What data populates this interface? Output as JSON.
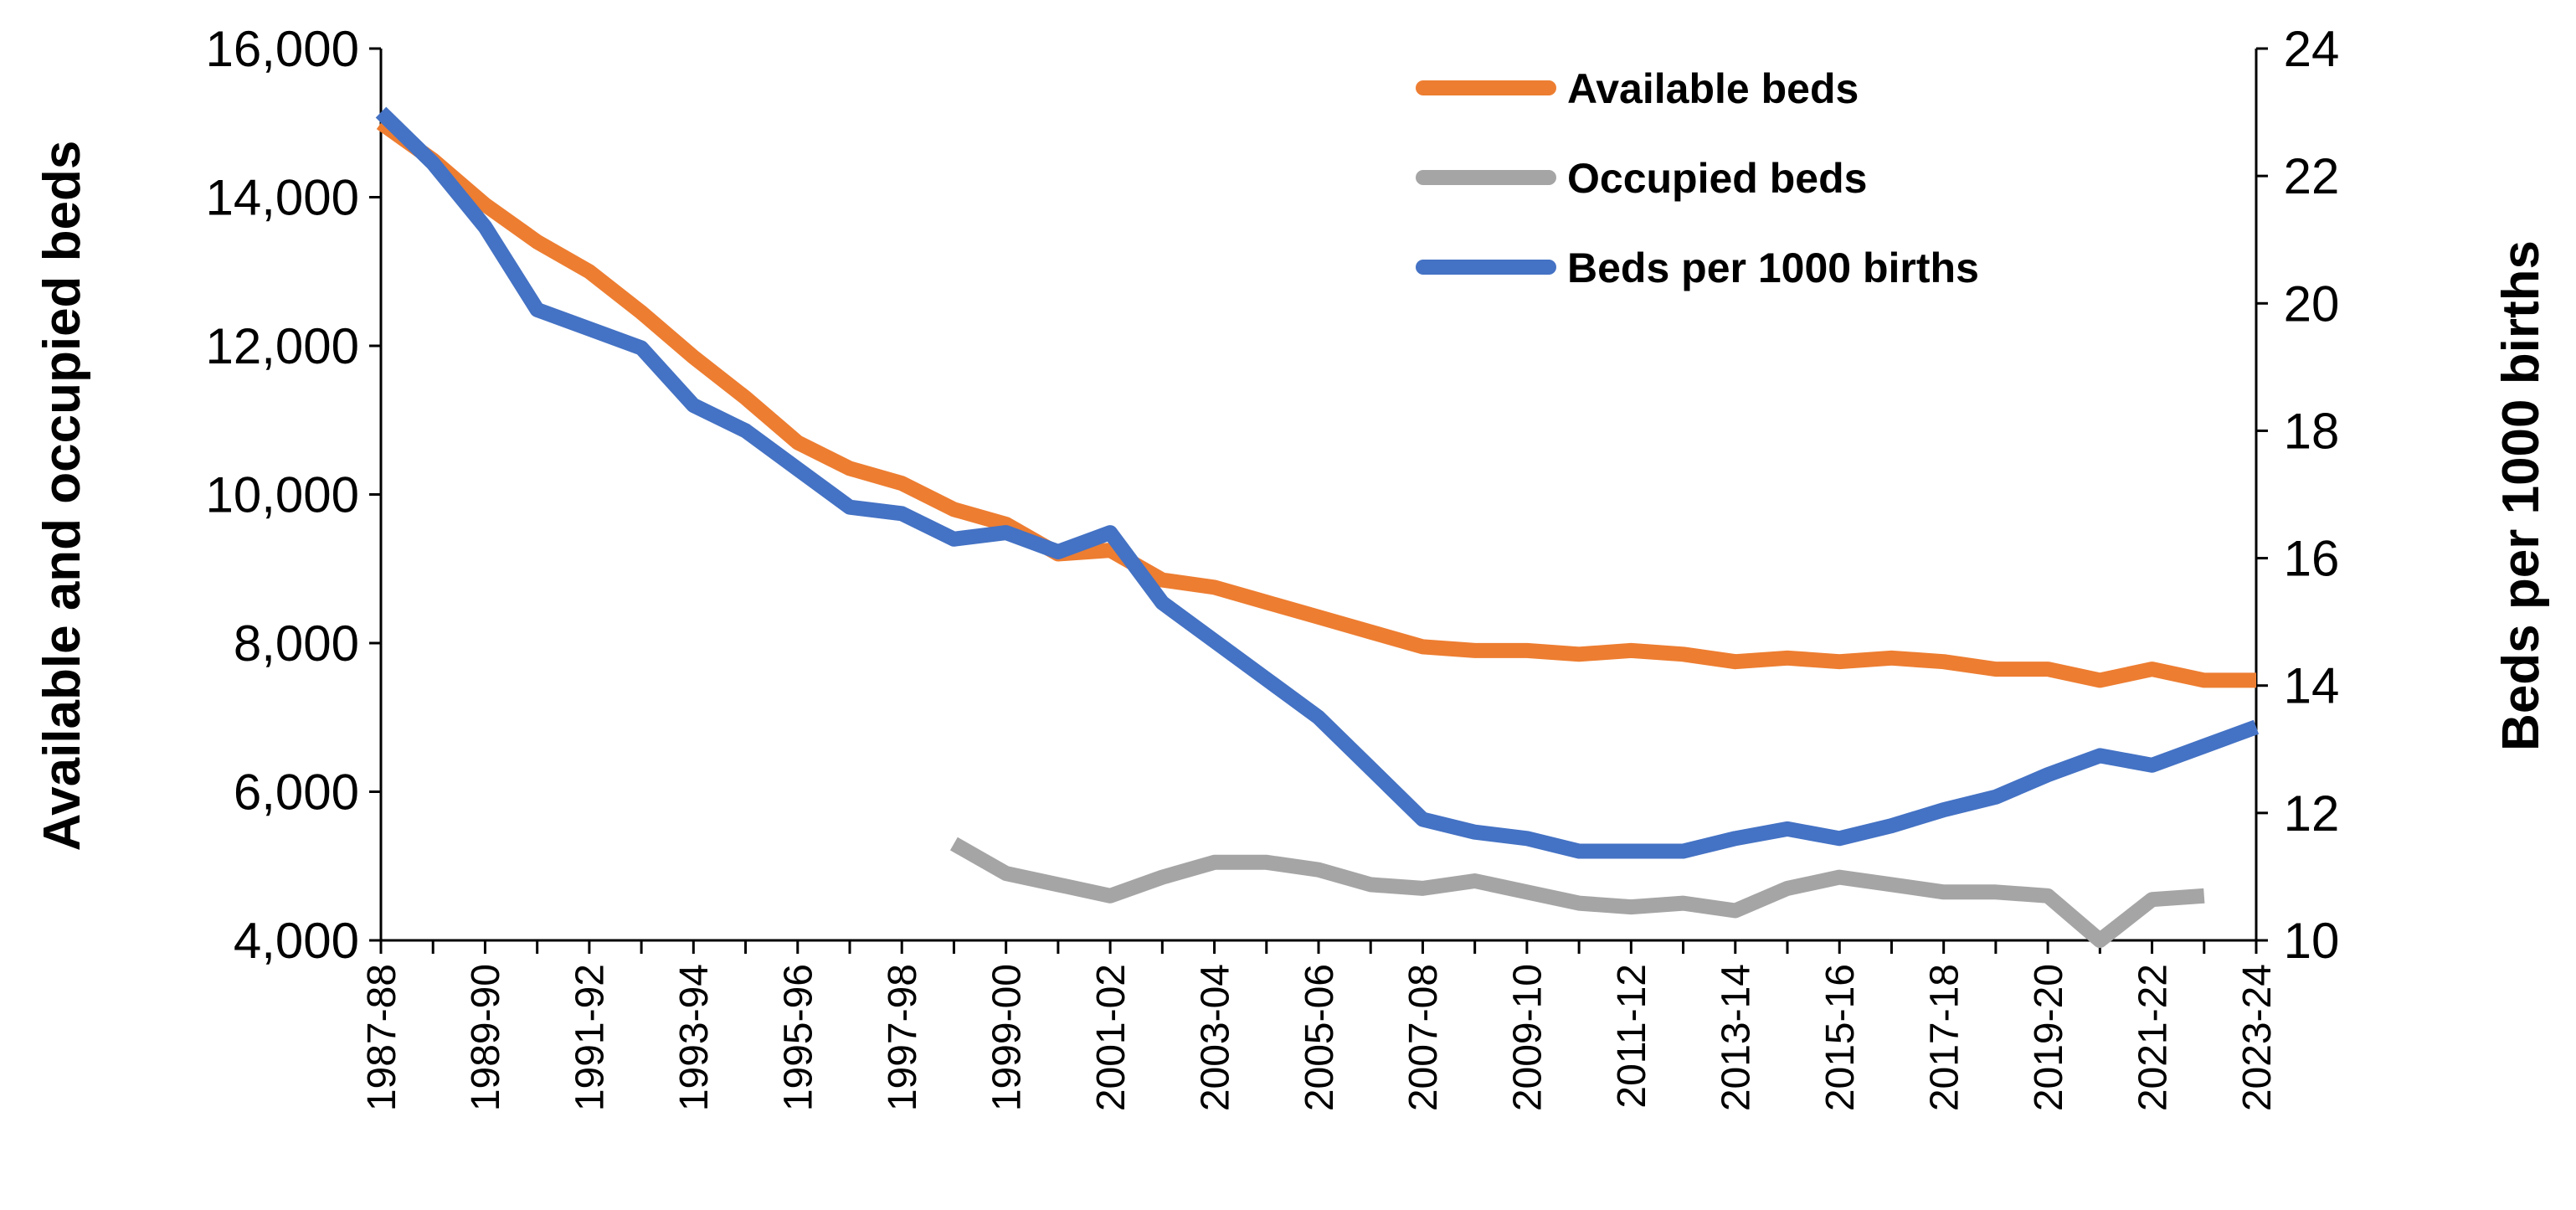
{
  "chart_data": {
    "type": "line",
    "categories": [
      "1987-88",
      "1988-89",
      "1989-90",
      "1990-91",
      "1991-92",
      "1992-93",
      "1993-94",
      "1994-95",
      "1995-96",
      "1996-97",
      "1997-98",
      "1998-99",
      "1999-00",
      "2000-01",
      "2001-02",
      "2002-03",
      "2003-04",
      "2004-05",
      "2005-06",
      "2006-07",
      "2007-08",
      "2008-09",
      "2009-10",
      "2010-11",
      "2011-12",
      "2012-13",
      "2013-14",
      "2014-15",
      "2015-16",
      "2016-17",
      "2017-18",
      "2018-19",
      "2019-20",
      "2020-21",
      "2021-22",
      "2022-23",
      "2023-24"
    ],
    "x_tick_labels": [
      "1987-88",
      "1989-90",
      "1991-92",
      "1993-94",
      "1995-96",
      "1997-98",
      "1999-00",
      "2001-02",
      "2003-04",
      "2005-06",
      "2007-08",
      "2009-10",
      "2011-12",
      "2013-14",
      "2015-16",
      "2017-18",
      "2019-20",
      "2021-22",
      "2023-24"
    ],
    "series": [
      {
        "name": "Available beds",
        "axis": "left",
        "color": "#ED7D31",
        "values": [
          15000,
          14500,
          13900,
          13400,
          13000,
          12450,
          11850,
          11300,
          10700,
          10350,
          10150,
          9800,
          9600,
          9200,
          9250,
          8850,
          8750,
          8550,
          8350,
          8150,
          7950,
          7900,
          7900,
          7850,
          7900,
          7850,
          7750,
          7800,
          7750,
          7800,
          7750,
          7650,
          7650,
          7500,
          7650,
          7500,
          7500
        ]
      },
      {
        "name": "Occupied beds",
        "axis": "left",
        "color": "#A5A5A5",
        "values": [
          null,
          null,
          null,
          null,
          null,
          null,
          null,
          null,
          null,
          null,
          null,
          5300,
          4900,
          4750,
          4600,
          4850,
          5050,
          5050,
          4950,
          4750,
          4700,
          4800,
          4650,
          4500,
          4450,
          4500,
          4400,
          4700,
          4850,
          4750,
          4650,
          4650,
          4600,
          4000,
          4550,
          4600,
          null
        ]
      },
      {
        "name": "Beds per 1000 births",
        "axis": "right",
        "color": "#4472C4",
        "values": [
          23.0,
          22.2,
          21.2,
          19.9,
          19.6,
          19.3,
          18.4,
          18.0,
          17.4,
          16.8,
          16.7,
          16.3,
          16.4,
          16.1,
          16.4,
          15.3,
          14.7,
          14.1,
          13.5,
          12.7,
          11.9,
          11.7,
          11.6,
          11.4,
          11.4,
          11.4,
          11.6,
          11.75,
          11.6,
          11.8,
          12.05,
          12.25,
          12.6,
          12.9,
          12.75,
          13.05,
          13.35
        ]
      }
    ],
    "y_left": {
      "label": "Available and occupied beds",
      "min": 4000,
      "max": 16000,
      "ticks": [
        4000,
        6000,
        8000,
        10000,
        12000,
        14000,
        16000
      ],
      "tick_labels": [
        "4,000",
        "6,000",
        "8,000",
        "10,000",
        "12,000",
        "14,000",
        "16,000"
      ]
    },
    "y_right": {
      "label": "Beds per 1000 births",
      "min": 10,
      "max": 24,
      "ticks": [
        10,
        12,
        14,
        16,
        18,
        20,
        22,
        24
      ],
      "tick_labels": [
        "10",
        "12",
        "14",
        "16",
        "18",
        "20",
        "22",
        "24"
      ]
    },
    "legend": {
      "position": "top-right",
      "items": [
        "Available beds",
        "Occupied beds",
        "Beds per 1000 births"
      ]
    },
    "grid": false,
    "title": "",
    "xlabel": ""
  }
}
